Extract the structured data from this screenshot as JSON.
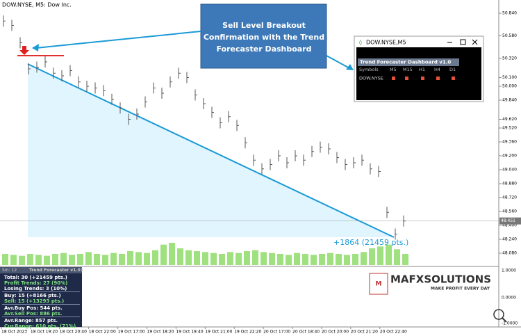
{
  "chart_header": "DOW.NYSE, M5:  Dow Inc.",
  "price_chart": {
    "ylim": [
      48.08,
      50.84
    ],
    "yticks": [
      {
        "value": 50.84,
        "label": "50.840"
      },
      {
        "value": 50.58,
        "label": "50.580"
      },
      {
        "value": 50.32,
        "label": "50.320"
      },
      {
        "value": 50.1,
        "label": "50.100"
      },
      {
        "value": 50.0,
        "label": "50.000"
      },
      {
        "value": 49.84,
        "label": "49.840"
      },
      {
        "value": 49.62,
        "label": "49.620"
      },
      {
        "value": 49.52,
        "label": "49.520"
      },
      {
        "value": 49.36,
        "label": "49.360"
      },
      {
        "value": 49.2,
        "label": "49.200"
      },
      {
        "value": 49.04,
        "label": "49.040"
      },
      {
        "value": 48.88,
        "label": "48.880"
      },
      {
        "value": 48.72,
        "label": "48.720"
      },
      {
        "value": 48.56,
        "label": "48.560"
      },
      {
        "value": 48.4,
        "label": "48.400"
      },
      {
        "value": 48.24,
        "label": "48.240"
      },
      {
        "value": 48.08,
        "label": "48.080"
      }
    ],
    "current_price": {
      "value": 48.451,
      "label": "48.451"
    },
    "closes": [
      50.75,
      50.7,
      50.5,
      50.2,
      50.22,
      50.28,
      50.15,
      50.12,
      50.18,
      50.05,
      50.0,
      49.98,
      49.95,
      49.85,
      49.75,
      49.62,
      49.68,
      49.82,
      49.98,
      49.92,
      50.05,
      50.15,
      50.1,
      49.9,
      49.8,
      49.7,
      49.58,
      49.65,
      49.55,
      49.35,
      49.15,
      49.05,
      49.1,
      49.2,
      49.12,
      49.2,
      49.15,
      49.25,
      49.3,
      49.28,
      49.18,
      49.1,
      49.12,
      49.15,
      49.05,
      49.02,
      48.55,
      48.3,
      48.45
    ],
    "volumes": [
      12,
      11,
      10,
      12,
      11,
      10,
      12,
      13,
      11,
      12,
      14,
      12,
      11,
      13,
      12,
      15,
      14,
      13,
      16,
      22,
      24,
      18,
      16,
      15,
      14,
      13,
      12,
      14,
      13,
      15,
      16,
      14,
      13,
      12,
      11,
      13,
      12,
      11,
      12,
      13,
      12,
      11,
      12,
      14,
      18,
      20,
      22,
      17,
      12
    ],
    "trend_result": "+1864 (21459 pts.)"
  },
  "callout": [
    "Sell Level Breakout",
    "Confirmation with the Trend",
    "Forecaster Dashboard"
  ],
  "dashboard": {
    "window_title": "DOW.NYSE,M5",
    "panel_title": "Trend Forecaster Dashboard v1.0",
    "headers": [
      "Symbols",
      "M5",
      "M15",
      "H1",
      "H4",
      "D1"
    ],
    "row": "DOW.NYSE"
  },
  "stats": {
    "header": [
      "Sm: 12",
      "Trend Forecaster v1.01"
    ],
    "groups": [
      [
        "Total: 30 (+21459 pts.)",
        "Profit Trends: 27 (90%)",
        "Losing Trends: 3 (10%)"
      ],
      [
        "Buy: 15 (+8166 pts.)",
        "Sell: 15 (+13293 pts.)"
      ],
      [
        "Avr.Buy Pos: 544 pts.",
        "Avr.Sell Pos: 886 pts."
      ],
      [
        "Avr.Range: 857 pts.",
        "Cur.Range: 610 pts. (71%)"
      ]
    ]
  },
  "indicator_axis": [
    "1.0000",
    "0.0000",
    "-1.0000"
  ],
  "logo": {
    "name": "MAFXSOLUTIONS",
    "tagline": "MAKE PROFIT EVERY DAY"
  },
  "time_labels": [
    "18 Oct 2023",
    "18 Oct 19:20",
    "18 Oct 20:40",
    "18 Oct 22:00",
    "19 Oct 17:00",
    "19 Oct 18:20",
    "19 Oct 19:40",
    "19 Oct 21:00",
    "19 Oct 22:20",
    "20 Oct 17:00",
    "20 Oct 18:40",
    "20 Oct 20:00",
    "20 Oct 21:20",
    "20 Oct 22:40"
  ]
}
